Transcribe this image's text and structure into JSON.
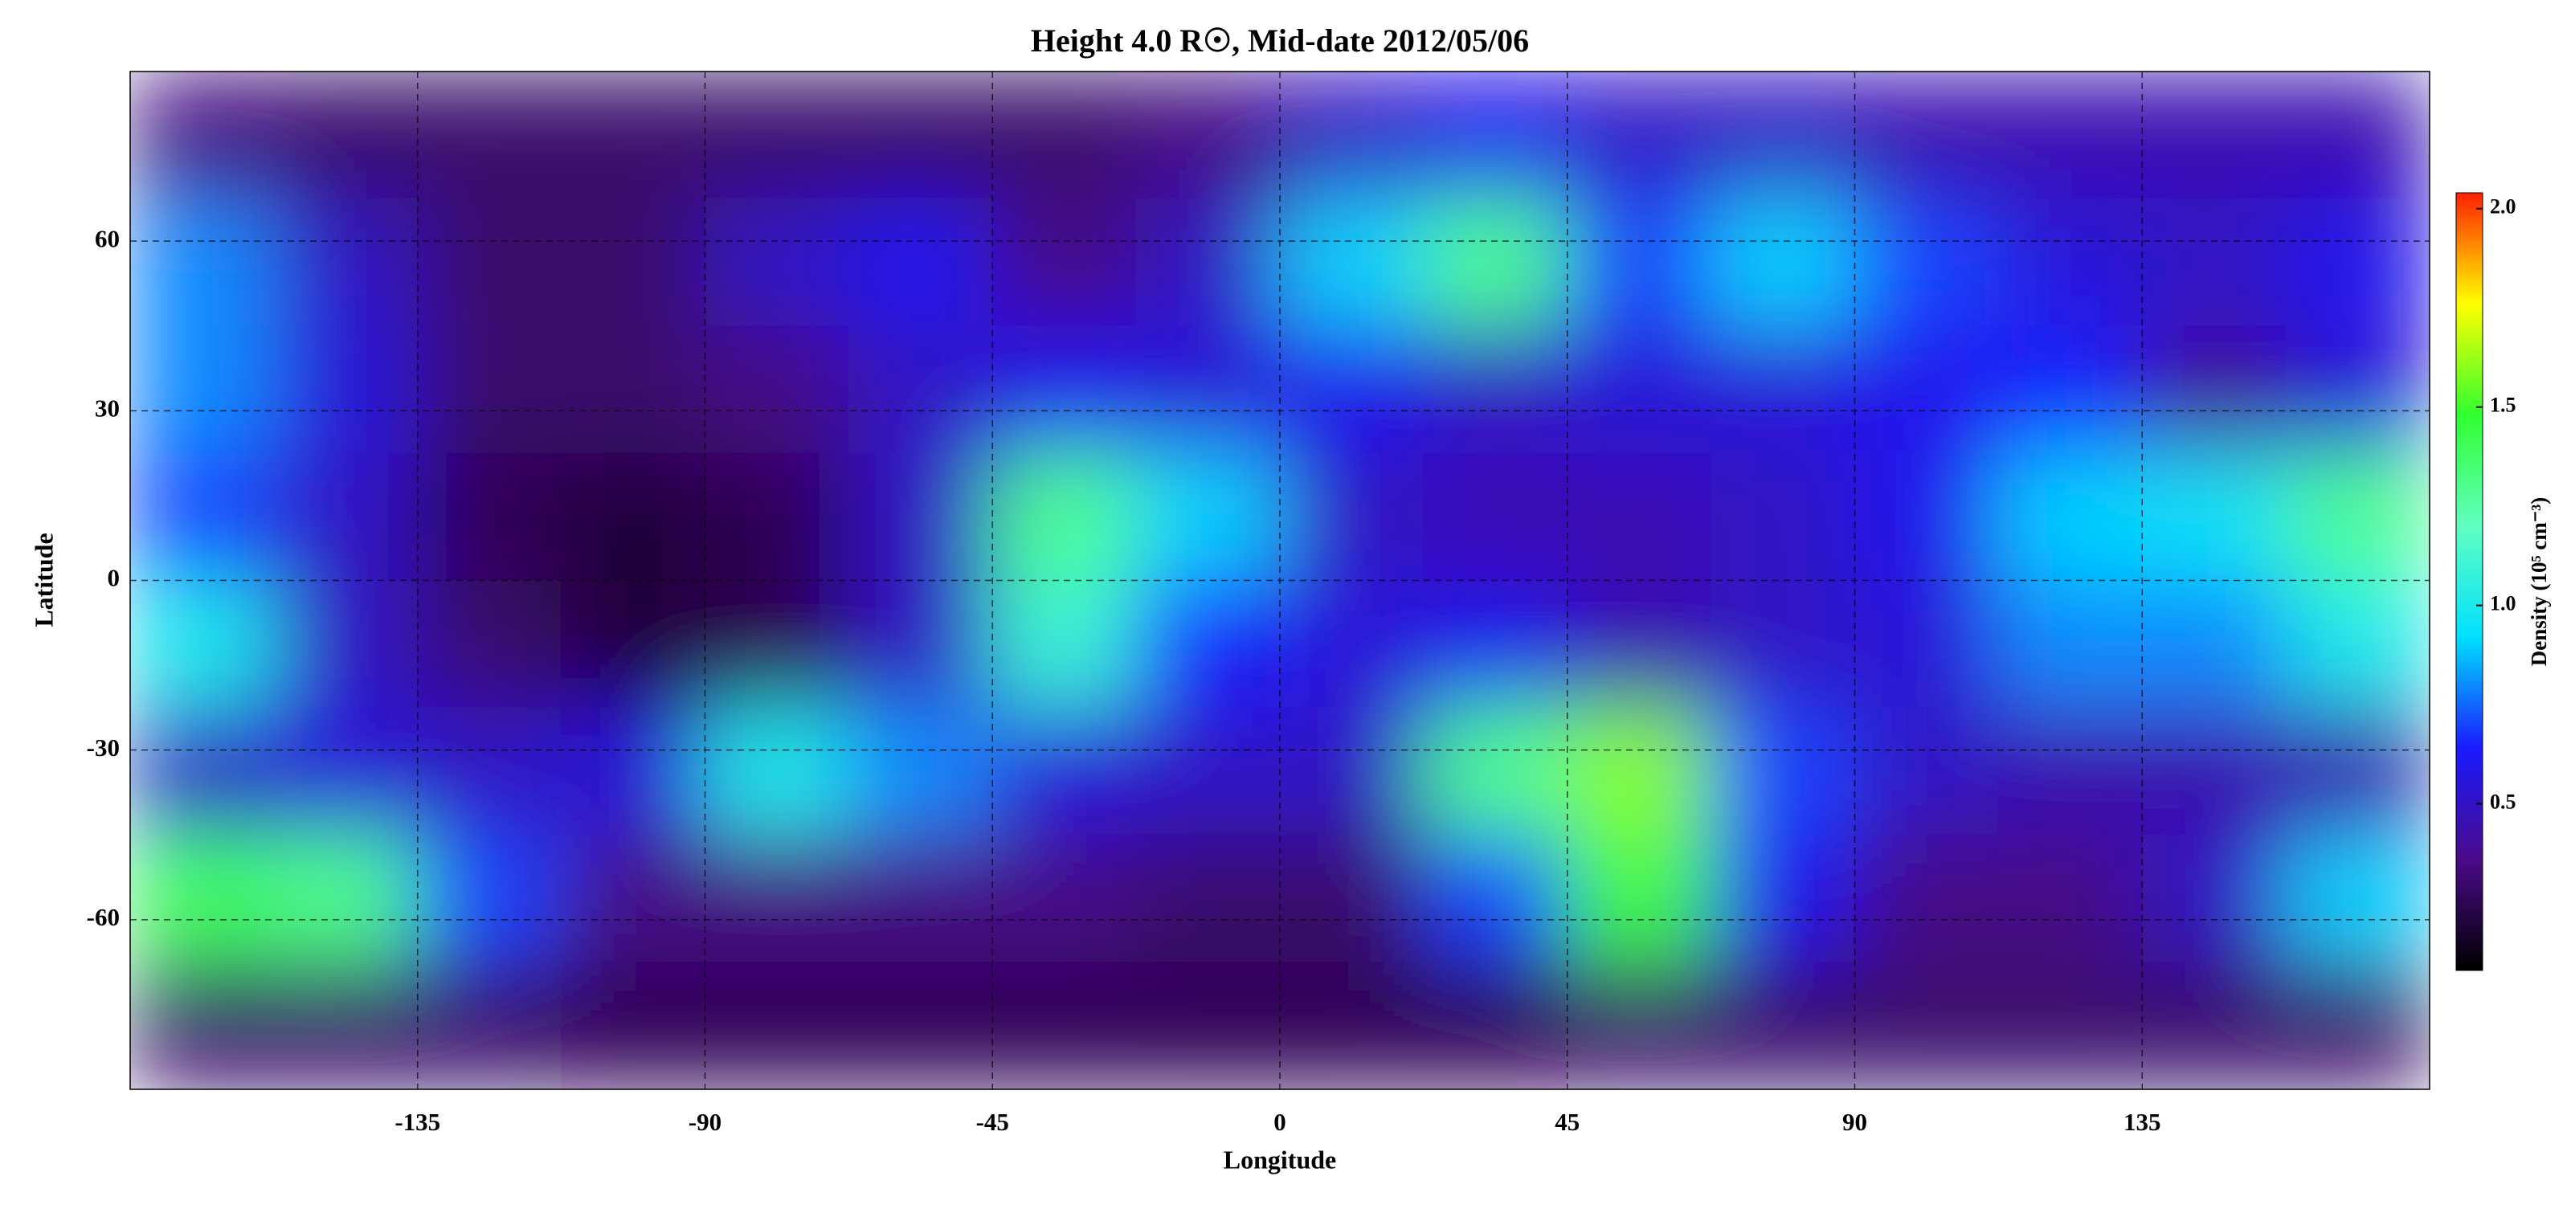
{
  "chart_data": {
    "type": "heatmap",
    "title": "Height 4.0 R☉, Mid-date 2012/05/06",
    "x_label": "Longitude",
    "y_label": "Latitude",
    "colorbar_label": "Density (10⁵ cm⁻³)",
    "x": [
      -168.75,
      -146.25,
      -123.75,
      -101.25,
      -78.75,
      -56.25,
      -33.75,
      -11.25,
      11.25,
      33.75,
      56.25,
      78.75,
      101.25,
      123.75,
      146.25,
      168.75
    ],
    "y": [
      78.75,
      56.25,
      33.75,
      11.25,
      -11.25,
      -33.75,
      -56.25,
      -78.75
    ],
    "z": [
      [
        0.35,
        0.3,
        0.3,
        0.3,
        0.3,
        0.3,
        0.3,
        0.35,
        0.5,
        0.6,
        0.5,
        0.5,
        0.45,
        0.45,
        0.45,
        0.45
      ],
      [
        0.8,
        0.5,
        0.3,
        0.3,
        0.5,
        0.6,
        0.35,
        0.5,
        0.9,
        1.3,
        0.7,
        0.9,
        0.7,
        0.55,
        0.5,
        0.6
      ],
      [
        0.8,
        0.55,
        0.3,
        0.3,
        0.35,
        0.5,
        0.6,
        0.55,
        0.6,
        0.5,
        0.55,
        0.55,
        0.6,
        0.65,
        0.4,
        0.55
      ],
      [
        0.7,
        0.5,
        0.25,
        0.2,
        0.25,
        0.5,
        1.3,
        0.9,
        0.5,
        0.45,
        0.45,
        0.5,
        0.6,
        0.9,
        0.95,
        1.3
      ],
      [
        1.0,
        0.5,
        0.3,
        0.2,
        0.25,
        0.5,
        1.1,
        0.65,
        0.55,
        0.6,
        0.45,
        0.5,
        0.55,
        0.8,
        0.8,
        1.0
      ],
      [
        0.5,
        0.55,
        0.5,
        0.55,
        1.0,
        0.8,
        0.55,
        0.5,
        0.5,
        1.3,
        1.6,
        0.7,
        0.5,
        0.45,
        0.45,
        0.45
      ],
      [
        1.4,
        1.3,
        0.7,
        0.35,
        0.35,
        0.35,
        0.35,
        0.3,
        0.3,
        0.7,
        1.5,
        0.6,
        0.35,
        0.35,
        0.5,
        0.9
      ],
      [
        0.3,
        0.3,
        0.3,
        0.25,
        0.25,
        0.25,
        0.25,
        0.25,
        0.25,
        0.25,
        0.3,
        0.3,
        0.3,
        0.3,
        0.3,
        0.3
      ]
    ],
    "xlim": [
      -180,
      180
    ],
    "ylim": [
      -90,
      90
    ],
    "xticks": [
      -135,
      -90,
      -45,
      0,
      45,
      90,
      135
    ],
    "yticks": [
      -60,
      -30,
      0,
      30,
      60
    ],
    "clim": [
      0.08,
      2.04
    ],
    "cticks": [
      0.5,
      {
        "value": 1.0,
        "label": "1.0"
      },
      1.5,
      {
        "value": 2.0,
        "label": "2.0"
      }
    ],
    "colormap": [
      "#000000",
      "#4a0a8a",
      "#1a1aff",
      "#00e0ff",
      "#60ffc0",
      "#30ff30",
      "#ffff00",
      "#ff2000"
    ],
    "grid": true
  }
}
